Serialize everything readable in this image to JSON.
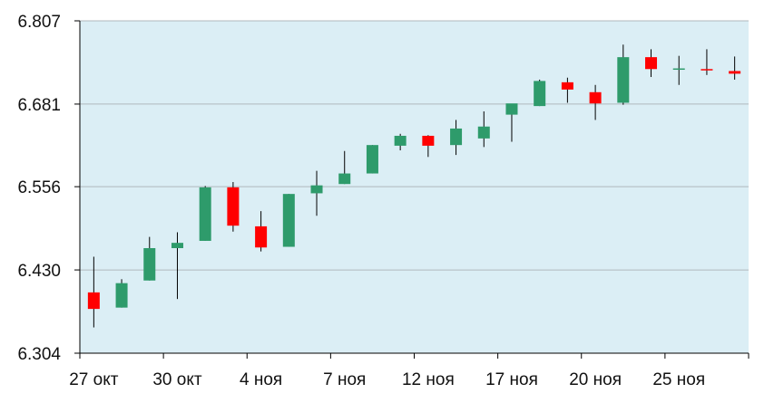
{
  "chart_data": {
    "type": "candlestick",
    "title": "",
    "xlabel": "",
    "ylabel": "",
    "ylim": [
      6.304,
      6.807
    ],
    "y_ticks": [
      "6.807",
      "6.681",
      "6.556",
      "6.430",
      "6.304"
    ],
    "x_tick_labels": [
      {
        "label": "27 окт",
        "at": 0
      },
      {
        "label": "30 окт",
        "at": 3
      },
      {
        "label": "4 ноя",
        "at": 6
      },
      {
        "label": "7 ноя",
        "at": 9
      },
      {
        "label": "12 ноя",
        "at": 12
      },
      {
        "label": "17 ноя",
        "at": 15
      },
      {
        "label": "20 ноя",
        "at": 18
      },
      {
        "label": "25 ноя",
        "at": 21
      }
    ],
    "grid": "horizontal",
    "colors": {
      "background": "#dbeef5",
      "up": "#2e9b6b",
      "down": "#ff0000",
      "grid": "#b0b8bd",
      "wick": "#000000"
    },
    "candles": [
      {
        "open": 6.396,
        "high": 6.45,
        "low": 6.343,
        "close": 6.371
      },
      {
        "open": 6.373,
        "high": 6.416,
        "low": 6.373,
        "close": 6.41
      },
      {
        "open": 6.414,
        "high": 6.48,
        "low": 6.414,
        "close": 6.463
      },
      {
        "open": 6.463,
        "high": 6.487,
        "low": 6.386,
        "close": 6.471
      },
      {
        "open": 6.474,
        "high": 6.557,
        "low": 6.474,
        "close": 6.555
      },
      {
        "open": 6.555,
        "high": 6.563,
        "low": 6.488,
        "close": 6.497
      },
      {
        "open": 6.496,
        "high": 6.519,
        "low": 6.458,
        "close": 6.464
      },
      {
        "open": 6.465,
        "high": 6.545,
        "low": 6.465,
        "close": 6.545
      },
      {
        "open": 6.546,
        "high": 6.58,
        "low": 6.512,
        "close": 6.558
      },
      {
        "open": 6.56,
        "high": 6.61,
        "low": 6.56,
        "close": 6.576
      },
      {
        "open": 6.576,
        "high": 6.619,
        "low": 6.576,
        "close": 6.619
      },
      {
        "open": 6.618,
        "high": 6.636,
        "low": 6.611,
        "close": 6.633
      },
      {
        "open": 6.633,
        "high": 6.634,
        "low": 6.601,
        "close": 6.618
      },
      {
        "open": 6.619,
        "high": 6.657,
        "low": 6.604,
        "close": 6.644
      },
      {
        "open": 6.629,
        "high": 6.67,
        "low": 6.616,
        "close": 6.647
      },
      {
        "open": 6.665,
        "high": 6.68,
        "low": 6.624,
        "close": 6.682
      },
      {
        "open": 6.678,
        "high": 6.718,
        "low": 6.678,
        "close": 6.716
      },
      {
        "open": 6.714,
        "high": 6.721,
        "low": 6.683,
        "close": 6.703
      },
      {
        "open": 6.699,
        "high": 6.71,
        "low": 6.657,
        "close": 6.682
      },
      {
        "open": 6.683,
        "high": 6.771,
        "low": 6.68,
        "close": 6.752
      },
      {
        "open": 6.752,
        "high": 6.764,
        "low": 6.722,
        "close": 6.734
      },
      {
        "open": 6.735,
        "high": 6.754,
        "low": 6.71,
        "close": 6.735
      },
      {
        "open": 6.734,
        "high": 6.764,
        "low": 6.725,
        "close": 6.733
      },
      {
        "open": 6.731,
        "high": 6.753,
        "low": 6.718,
        "close": 6.727
      }
    ]
  }
}
